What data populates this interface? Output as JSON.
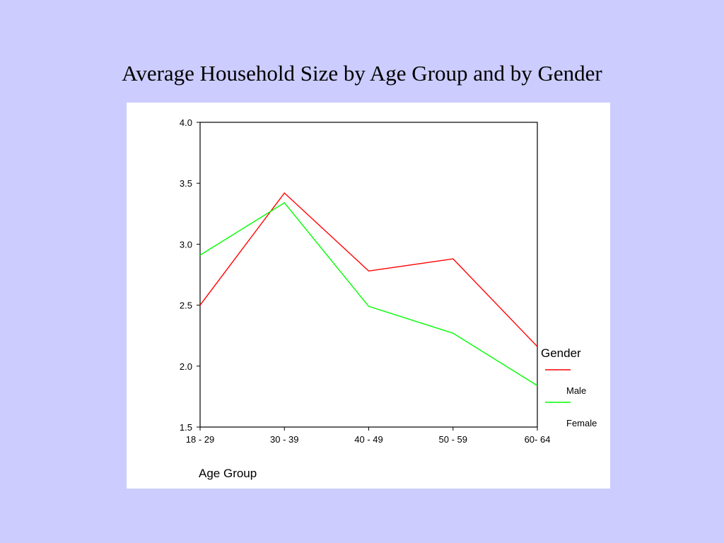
{
  "slide": {
    "title": "Average Household Size by Age Group and by Gender",
    "background_color": "#ccccff"
  },
  "chart_data": {
    "type": "line",
    "title": "Average Household Size by Age Group and by Gender",
    "xlabel": "Age Group",
    "ylabel": "",
    "categories": [
      "18 - 29",
      "30 - 39",
      "40 - 49",
      "50 - 59",
      "60- 64"
    ],
    "ylim": [
      1.5,
      4.0
    ],
    "yticks": [
      "1.5",
      "2.0",
      "2.5",
      "3.0",
      "3.5",
      "4.0"
    ],
    "grid": false,
    "legend": {
      "title": "Gender",
      "placement": "right"
    },
    "series": [
      {
        "name": "Male",
        "color": "#ff0000",
        "values": [
          2.5,
          3.42,
          2.78,
          2.88,
          2.16
        ]
      },
      {
        "name": "Female",
        "color": "#00ff00",
        "values": [
          2.91,
          3.34,
          2.49,
          2.27,
          1.84
        ]
      }
    ]
  }
}
